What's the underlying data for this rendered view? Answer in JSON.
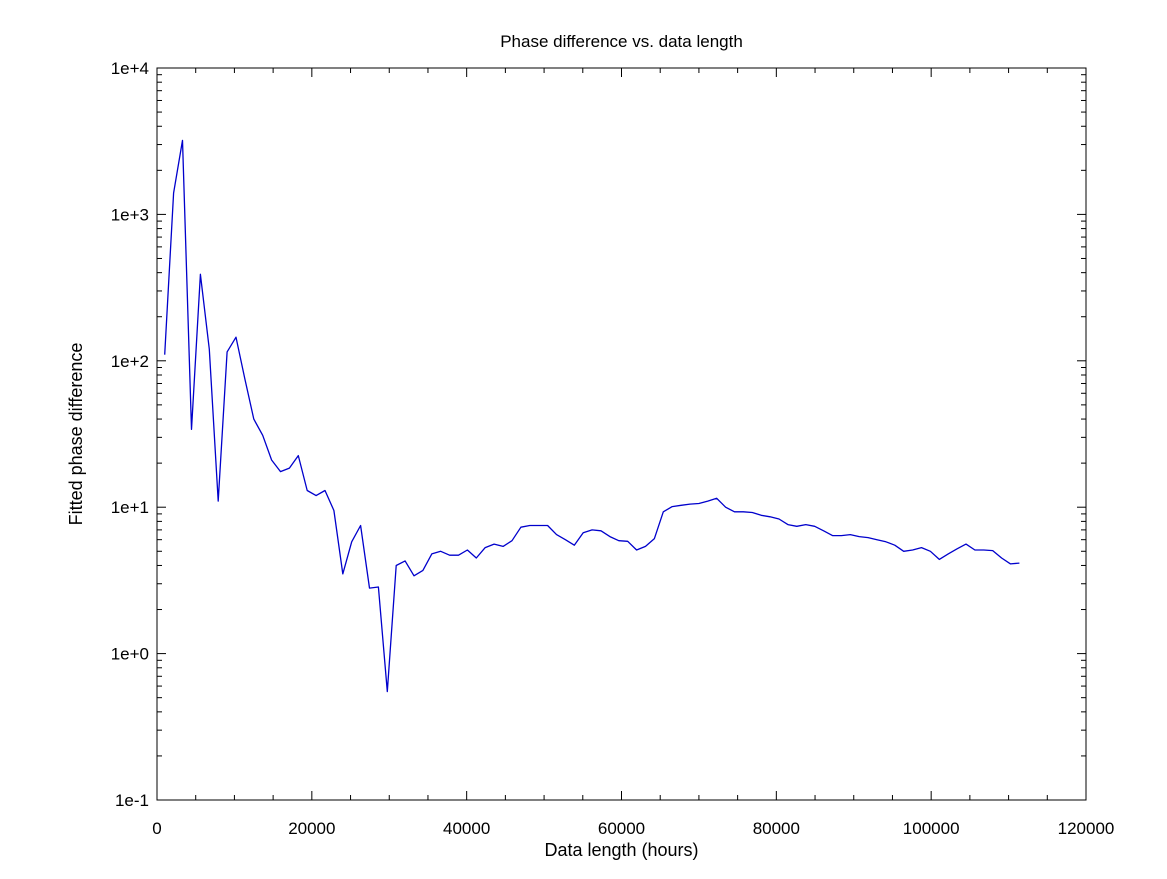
{
  "chart_data": {
    "type": "line",
    "title": "Phase difference vs. data length",
    "xlabel": "Data length (hours)",
    "ylabel": "Fitted phase difference",
    "xlim": [
      0,
      120000
    ],
    "ylim": [
      0.1,
      10000
    ],
    "yscale": "log",
    "grid": false,
    "legend": "none",
    "x_ticks": [
      {
        "value": 0,
        "label": "0"
      },
      {
        "value": 20000,
        "label": "20000"
      },
      {
        "value": 40000,
        "label": "40000"
      },
      {
        "value": 60000,
        "label": "60000"
      },
      {
        "value": 80000,
        "label": "80000"
      },
      {
        "value": 100000,
        "label": "100000"
      },
      {
        "value": 120000,
        "label": "120000"
      }
    ],
    "y_ticks": [
      {
        "value": 0.1,
        "label": "1e-1"
      },
      {
        "value": 1,
        "label": "1e+0"
      },
      {
        "value": 10,
        "label": "1e+1"
      },
      {
        "value": 100,
        "label": "1e+2"
      },
      {
        "value": 1000,
        "label": "1e+3"
      },
      {
        "value": 10000,
        "label": "1e+4"
      }
    ],
    "colors": {
      "line": "#0000cc",
      "axes": "#000000",
      "background": "#ffffff"
    },
    "series": [
      {
        "x": [
          1000,
          2150,
          3300,
          4450,
          5600,
          6750,
          7900,
          9050,
          10200,
          11350,
          12500,
          13650,
          14800,
          15950,
          17100,
          18250,
          19400,
          20550,
          21700,
          22850,
          24000,
          25150,
          26300,
          27450,
          28600,
          29750,
          30900,
          32050,
          33200,
          34350,
          35500,
          36650,
          37800,
          38950,
          40100,
          41250,
          42400,
          43550,
          44700,
          45850,
          47000,
          48150,
          49300,
          50450,
          51600,
          52750,
          53900,
          55050,
          56200,
          57350,
          58500,
          59650,
          60800,
          61950,
          63100,
          64250,
          65400,
          66550,
          67700,
          68850,
          70000,
          71150,
          72300,
          73450,
          74600,
          75750,
          76900,
          78050,
          79200,
          80350,
          81500,
          82650,
          83800,
          84950,
          86100,
          87250,
          88400,
          89550,
          90700,
          91850,
          93000,
          94150,
          95300,
          96450,
          97600,
          98750,
          99900,
          101050,
          102200,
          103350,
          104500,
          105650,
          106800,
          107950,
          109100,
          110250,
          111400
        ],
        "y": [
          110,
          1400,
          3200,
          34,
          390,
          120,
          11,
          115,
          145,
          75,
          40,
          31,
          21,
          17.5,
          18.5,
          22.5,
          13,
          12,
          13,
          9.5,
          3.5,
          5.8,
          7.5,
          2.8,
          2.85,
          0.55,
          4.0,
          4.3,
          3.4,
          3.7,
          4.8,
          5.0,
          4.7,
          4.7,
          5.1,
          4.5,
          5.3,
          5.6,
          5.4,
          5.9,
          7.3,
          7.5,
          7.5,
          7.5,
          6.5,
          6.0,
          5.5,
          6.7,
          7.0,
          6.9,
          6.3,
          5.9,
          5.85,
          5.1,
          5.4,
          6.1,
          9.3,
          10.1,
          10.3,
          10.5,
          10.6,
          11.0,
          11.5,
          10.0,
          9.3,
          9.3,
          9.2,
          8.8,
          8.6,
          8.3,
          7.6,
          7.4,
          7.6,
          7.4,
          6.9,
          6.4,
          6.4,
          6.5,
          6.3,
          6.2,
          6.0,
          5.8,
          5.5,
          5.0,
          5.1,
          5.3,
          5.0,
          4.4,
          4.8,
          5.2,
          5.6,
          5.1,
          5.1,
          5.05,
          4.5,
          4.1,
          4.15
        ]
      }
    ]
  }
}
